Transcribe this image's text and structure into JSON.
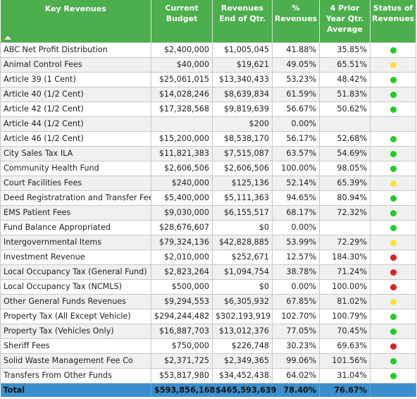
{
  "headers": {
    "name": "Key Revenues",
    "budget": "Current Budget",
    "revenues": "Revenues End of Qtr.",
    "pct": "% Revenues",
    "prior": "4 Prior Year Qtr. Average",
    "status": "Status of Revenues"
  },
  "status_colors": {
    "green": "#22cc22",
    "yellow": "#ffe030",
    "red": "#e02020"
  },
  "rows": [
    {
      "name": "ABC Net Profit Distribution",
      "budget": "$2,400,000",
      "revenues": "$1,005,045",
      "pct": "41.88%",
      "prior": "35.85%",
      "status": "green"
    },
    {
      "name": "Animal Control Fees",
      "budget": "$40,000",
      "revenues": "$19,621",
      "pct": "49.05%",
      "prior": "65.51%",
      "status": "yellow"
    },
    {
      "name": "Article 39 (1 Cent)",
      "budget": "$25,061,015",
      "revenues": "$13,340,433",
      "pct": "53.23%",
      "prior": "48.42%",
      "status": "green"
    },
    {
      "name": "Article 40 (1/2 Cent)",
      "budget": "$14,028,246",
      "revenues": "$8,639,834",
      "pct": "61.59%",
      "prior": "51.83%",
      "status": "green"
    },
    {
      "name": "Article 42 (1/2 Cent)",
      "budget": "$17,328,568",
      "revenues": "$9,819,639",
      "pct": "56.67%",
      "prior": "50.62%",
      "status": "green"
    },
    {
      "name": "Article 44 (1/2 Cent)",
      "budget": "",
      "revenues": "$200",
      "pct": "0.00%",
      "prior": "",
      "status": ""
    },
    {
      "name": "Article 46 (1/2 Cent)",
      "budget": "$15,200,000",
      "revenues": "$8,538,170",
      "pct": "56.17%",
      "prior": "52.68%",
      "status": "green"
    },
    {
      "name": "City Sales Tax ILA",
      "budget": "$11,821,383",
      "revenues": "$7,515,087",
      "pct": "63.57%",
      "prior": "54.69%",
      "status": "green"
    },
    {
      "name": "Community Health Fund",
      "budget": "$2,606,506",
      "revenues": "$2,606,506",
      "pct": "100.00%",
      "prior": "98.05%",
      "status": "green"
    },
    {
      "name": "Court Facilities Fees",
      "budget": "$240,000",
      "revenues": "$125,136",
      "pct": "52.14%",
      "prior": "65.39%",
      "status": "yellow"
    },
    {
      "name": "Deed Registratration and Transfer Fees",
      "budget": "$5,400,000",
      "revenues": "$5,111,363",
      "pct": "94.65%",
      "prior": "80.94%",
      "status": "green"
    },
    {
      "name": "EMS Patient Fees",
      "budget": "$9,030,000",
      "revenues": "$6,155,517",
      "pct": "68.17%",
      "prior": "72.32%",
      "status": "green"
    },
    {
      "name": "Fund Balance Appropriated",
      "budget": "$28,676,607",
      "revenues": "$0",
      "pct": "0.00%",
      "prior": "",
      "status": "green"
    },
    {
      "name": "Intergovernmental Items",
      "budget": "$79,324,136",
      "revenues": "$42,828,885",
      "pct": "53.99%",
      "prior": "72.29%",
      "status": "yellow"
    },
    {
      "name": "Investment Revenue",
      "budget": "$2,010,000",
      "revenues": "$252,671",
      "pct": "12.57%",
      "prior": "184.30%",
      "status": "red"
    },
    {
      "name": "Local Occupancy Tax (General Fund)",
      "budget": "$2,823,264",
      "revenues": "$1,094,754",
      "pct": "38.78%",
      "prior": "71.24%",
      "status": "red"
    },
    {
      "name": "Local Occupancy Tax (NCMLS)",
      "budget": "$500,000",
      "revenues": "$0",
      "pct": "0.00%",
      "prior": "100.00%",
      "status": "red"
    },
    {
      "name": "Other General Funds Revenues",
      "budget": "$9,294,553",
      "revenues": "$6,305,932",
      "pct": "67.85%",
      "prior": "81.02%",
      "status": "yellow"
    },
    {
      "name": "Property Tax (All Except Vehicle)",
      "budget": "$294,244,482",
      "revenues": "$302,193,919",
      "pct": "102.70%",
      "prior": "100.79%",
      "status": "green"
    },
    {
      "name": "Property Tax (Vehicles Only)",
      "budget": "$16,887,703",
      "revenues": "$13,012,376",
      "pct": "77.05%",
      "prior": "70.45%",
      "status": "green"
    },
    {
      "name": "Sheriff Fees",
      "budget": "$750,000",
      "revenues": "$226,748",
      "pct": "30.23%",
      "prior": "69.63%",
      "status": "red"
    },
    {
      "name": "Solid Waste Management Fee Co",
      "budget": "$2,371,725",
      "revenues": "$2,349,365",
      "pct": "99.06%",
      "prior": "101.56%",
      "status": "green"
    },
    {
      "name": "Transfers From Other Funds",
      "budget": "$53,817,980",
      "revenues": "$34,452,438",
      "pct": "64.02%",
      "prior": "31.04%",
      "status": "green"
    }
  ],
  "total": {
    "name": "Total",
    "budget": "$593,856,168",
    "revenues": "$465,593,639",
    "pct": "78.40%",
    "prior": "76.67%"
  },
  "sort_icon": "sort-ascending-icon"
}
